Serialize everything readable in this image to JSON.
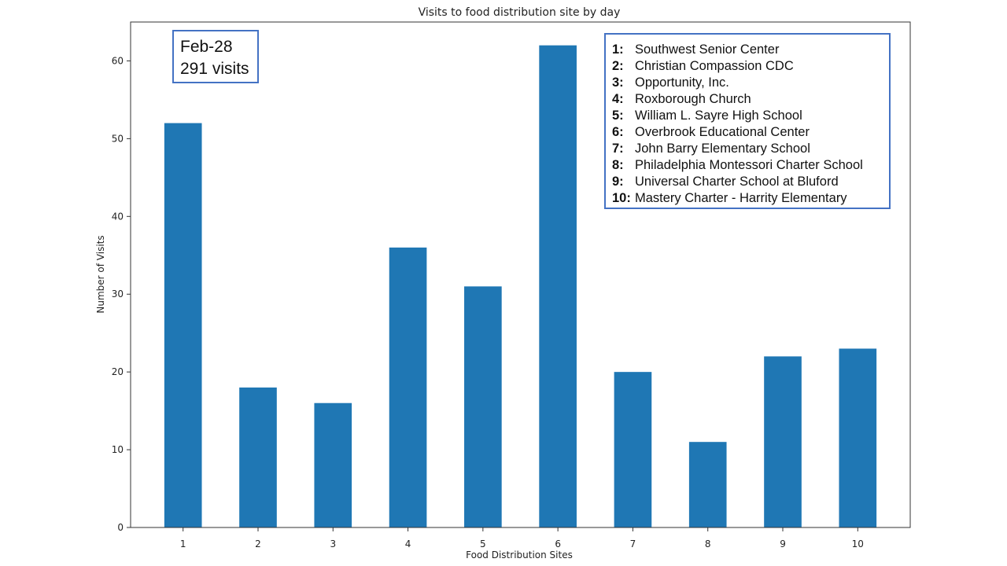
{
  "chart_data": {
    "type": "bar",
    "title": "Visits to food distribution site by day",
    "xlabel": "Food Distribution Sites",
    "ylabel": "Number of Visits",
    "categories": [
      "1",
      "2",
      "3",
      "4",
      "5",
      "6",
      "7",
      "8",
      "9",
      "10"
    ],
    "values": [
      52,
      18,
      16,
      36,
      31,
      62,
      20,
      11,
      22,
      23
    ],
    "ylim": [
      0,
      65
    ],
    "yticks": [
      0,
      10,
      20,
      30,
      40,
      50,
      60
    ],
    "bar_color": "#1f77b4",
    "grid": false
  },
  "annotation": {
    "date": "Feb-28",
    "total": "291 visits"
  },
  "legend": [
    {
      "num": "1:",
      "name": "Southwest Senior Center"
    },
    {
      "num": "2:",
      "name": "Christian Compassion CDC"
    },
    {
      "num": "3:",
      "name": "Opportunity, Inc."
    },
    {
      "num": "4:",
      "name": "Roxborough Church"
    },
    {
      "num": "5:",
      "name": "William L. Sayre High School"
    },
    {
      "num": "6:",
      "name": "Overbrook Educational Center"
    },
    {
      "num": "7:",
      "name": "John Barry Elementary School"
    },
    {
      "num": "8:",
      "name": "Philadelphia Montessori Charter School"
    },
    {
      "num": "9:",
      "name": "Universal Charter School at Bluford"
    },
    {
      "num": "10:",
      "name": "Mastery Charter - Harrity Elementary"
    }
  ]
}
